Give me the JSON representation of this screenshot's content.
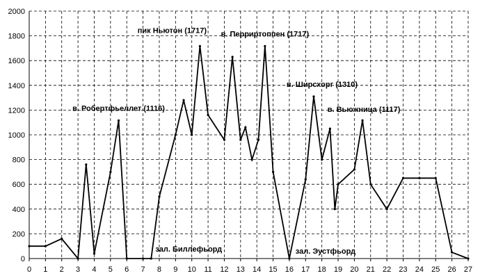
{
  "chart_data": {
    "type": "line",
    "title": "",
    "xlabel": "",
    "ylabel": "",
    "xlim": [
      0,
      27
    ],
    "ylim": [
      0,
      2000
    ],
    "x_ticks": [
      "0",
      "1",
      "2",
      "3",
      "4",
      "5",
      "6",
      "7",
      "8",
      "9",
      "10",
      "11",
      "12",
      "13",
      "14",
      "15",
      "16",
      "17",
      "18",
      "19",
      "20",
      "21",
      "22",
      "23",
      "24",
      "25",
      "26",
      "27"
    ],
    "y_ticks": [
      "0",
      "200",
      "400",
      "600",
      "800",
      "1000",
      "1200",
      "1400",
      "1600",
      "1800",
      "2000"
    ],
    "grid": true,
    "series": [
      {
        "points": [
          [
            0,
            100
          ],
          [
            1,
            100
          ],
          [
            2,
            160
          ],
          [
            3,
            0
          ],
          [
            3.5,
            760
          ],
          [
            4,
            40
          ],
          [
            5,
            700
          ],
          [
            5.5,
            1116
          ],
          [
            6,
            0
          ],
          [
            7,
            0
          ],
          [
            7.5,
            0
          ],
          [
            8,
            500
          ],
          [
            9,
            1000
          ],
          [
            9.5,
            1280
          ],
          [
            10,
            1000
          ],
          [
            10.5,
            1717
          ],
          [
            11,
            1160
          ],
          [
            12,
            960
          ],
          [
            12.5,
            1630
          ],
          [
            13,
            960
          ],
          [
            13.3,
            1060
          ],
          [
            13.7,
            800
          ],
          [
            14.1,
            960
          ],
          [
            14.5,
            1717
          ],
          [
            15,
            700
          ],
          [
            16,
            0
          ],
          [
            17,
            640
          ],
          [
            17.5,
            1310
          ],
          [
            18,
            800
          ],
          [
            18.5,
            1050
          ],
          [
            18.8,
            400
          ],
          [
            19,
            600
          ],
          [
            20,
            720
          ],
          [
            20.5,
            1117
          ],
          [
            21,
            600
          ],
          [
            22,
            400
          ],
          [
            23,
            650
          ],
          [
            24,
            650
          ],
          [
            25,
            650
          ],
          [
            26,
            50
          ],
          [
            27,
            0
          ]
        ]
      }
    ],
    "annotations": [
      {
        "text": "в. Робертфьеллет (1116)",
        "x": 5.5,
        "y": 1116
      },
      {
        "text": "пик Ньютон (1717)",
        "x": 10.5,
        "y": 1717
      },
      {
        "text": "в. Перриртоппен (1717)",
        "x": 14.5,
        "y": 1717
      },
      {
        "text": "в. Ширсхорг (1310)",
        "x": 17.5,
        "y": 1310
      },
      {
        "text": "в. Вьюжница (1117)",
        "x": 20.5,
        "y": 1117
      },
      {
        "text": "зал. Биллефьорд",
        "x": 7.5,
        "y": 0
      },
      {
        "text": "зал. Эустфьорд",
        "x": 16,
        "y": 0
      }
    ]
  }
}
